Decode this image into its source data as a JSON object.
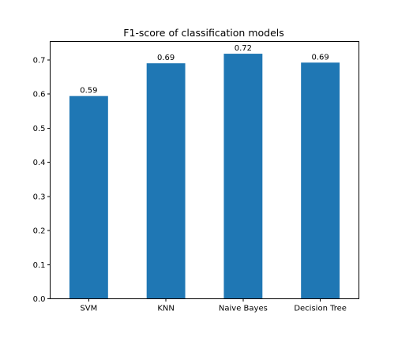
{
  "chart_data": {
    "type": "bar",
    "title": "F1-score of classification models",
    "xlabel": "",
    "ylabel": "",
    "categories": [
      "SVM",
      "KNN",
      "Naive Bayes",
      "Decision Tree"
    ],
    "values": [
      0.594,
      0.69,
      0.718,
      0.692
    ],
    "value_labels": [
      "0.59",
      "0.69",
      "0.72",
      "0.69"
    ],
    "ylim": [
      0,
      0.754
    ],
    "yticks": [
      0.0,
      0.1,
      0.2,
      0.3,
      0.4,
      0.5,
      0.6,
      0.7
    ],
    "ytick_labels": [
      "0.0",
      "0.1",
      "0.2",
      "0.3",
      "0.4",
      "0.5",
      "0.6",
      "0.7"
    ],
    "bar_color": "#1f77b4",
    "grid": false,
    "legend": "none"
  }
}
